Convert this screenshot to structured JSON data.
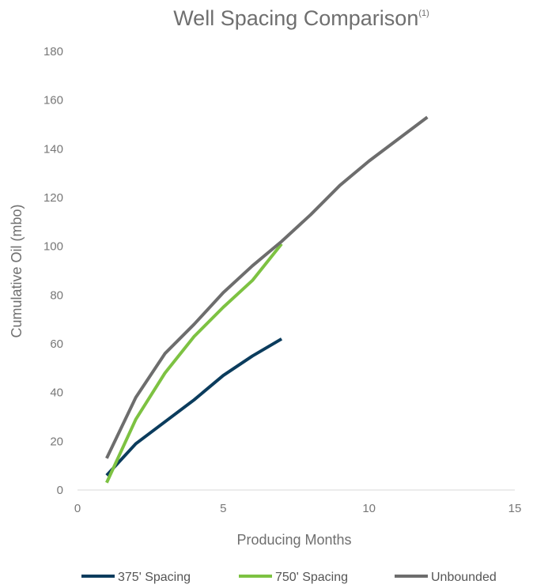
{
  "chart_data": {
    "type": "line",
    "title": "Well Spacing Comparison",
    "title_superscript": "(1)",
    "xlabel": "Producing Months",
    "ylabel": "Cumulative Oil (mbo)",
    "xlim": [
      0,
      15
    ],
    "ylim": [
      0,
      180
    ],
    "x_ticks": [
      0,
      5,
      10,
      15
    ],
    "y_ticks": [
      0,
      20,
      40,
      60,
      80,
      100,
      120,
      140,
      160,
      180
    ],
    "grid": false,
    "legend_position": "bottom",
    "series": [
      {
        "name": "375' Spacing",
        "color": "#0b3c5d",
        "x": [
          1,
          2,
          3,
          4,
          5,
          6,
          7
        ],
        "y": [
          6,
          19,
          28,
          37,
          47,
          55,
          62
        ]
      },
      {
        "name": "750' Spacing",
        "color": "#7dc242",
        "x": [
          1,
          2,
          3,
          4,
          5,
          6,
          7
        ],
        "y": [
          3,
          29,
          48,
          63,
          75,
          86,
          101
        ]
      },
      {
        "name": "Unbounded",
        "color": "#6d6d6d",
        "x": [
          1,
          2,
          3,
          4,
          5,
          6,
          7,
          8,
          9,
          10,
          11,
          12
        ],
        "y": [
          13,
          38,
          56,
          68,
          81,
          92,
          102,
          113,
          125,
          135,
          144,
          153
        ]
      }
    ]
  }
}
